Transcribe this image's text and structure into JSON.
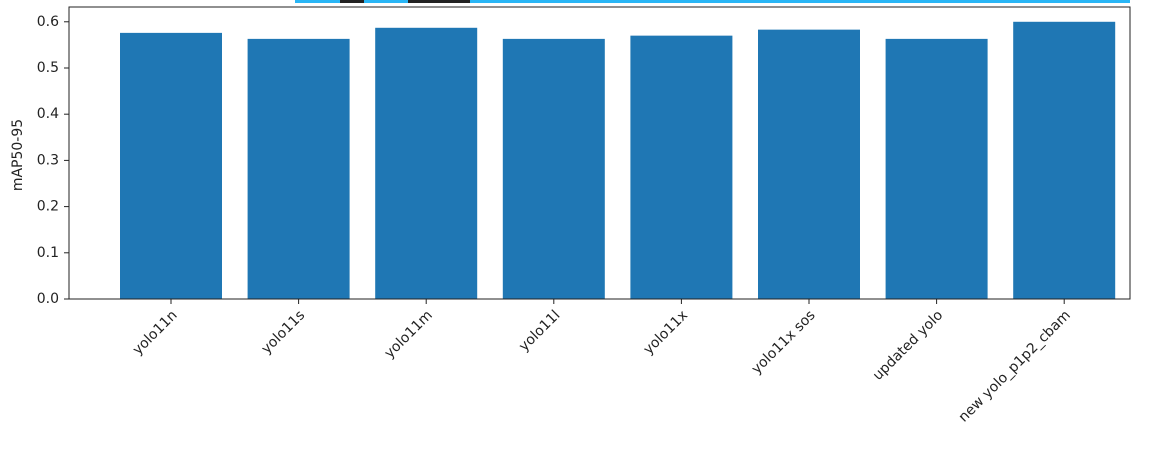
{
  "chart_data": {
    "type": "bar",
    "y_label": "mAP50-95",
    "categories": [
      "yolo11n",
      "yolo11s",
      "yolo11m",
      "yolo11l",
      "yolo11x",
      "yolo11x sos",
      "updated yolo",
      "new yolo_p1p2_cbam"
    ],
    "values": [
      0.576,
      0.563,
      0.587,
      0.563,
      0.57,
      0.583,
      0.563,
      0.6
    ],
    "color": "#1f77b4",
    "ylim": [
      0,
      0.632
    ],
    "yticks": [
      {
        "value": 0,
        "label": "0.0"
      },
      0.1,
      0.2,
      0.3,
      0.4,
      0.5,
      0.6
    ]
  }
}
